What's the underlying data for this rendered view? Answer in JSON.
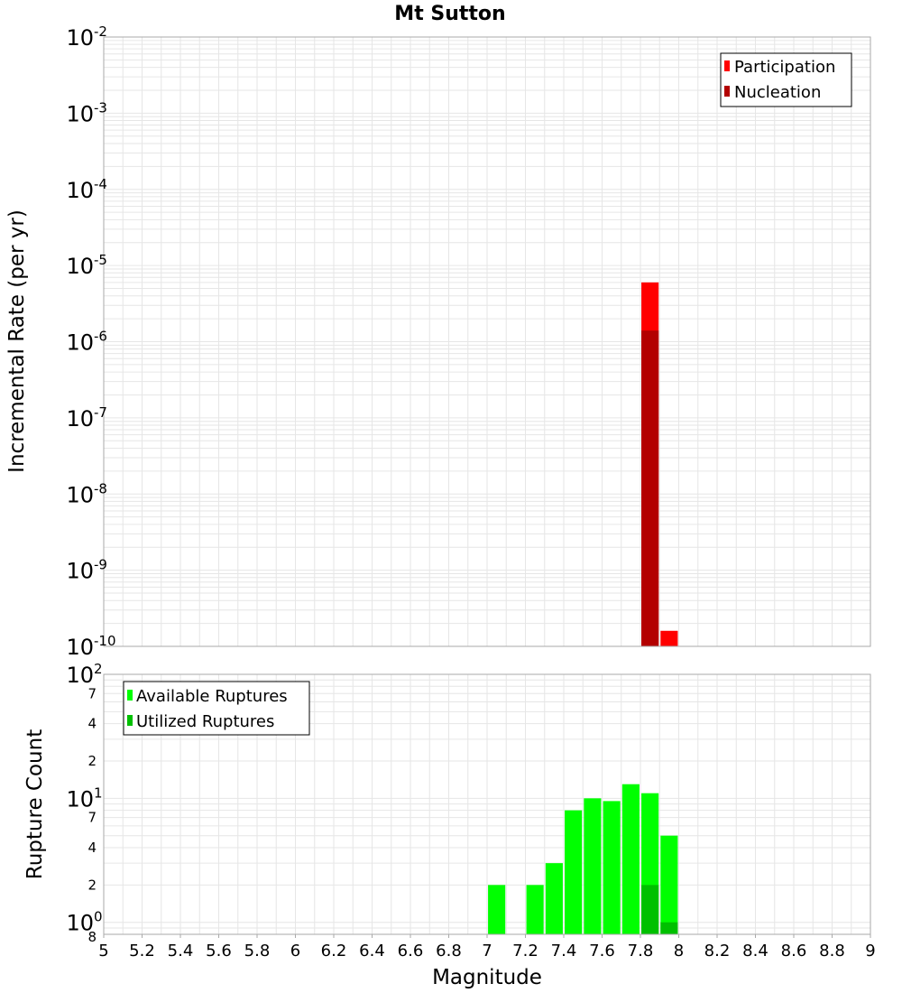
{
  "chart_data": [
    {
      "type": "bar",
      "title": "Mt Sutton",
      "ylabel": "Incremental Rate (per yr)",
      "yscale": "log",
      "ylim": [
        1e-10,
        0.01
      ],
      "xlim": [
        5,
        9
      ],
      "y_ticks": [
        {
          "base": "10",
          "exp": "-10"
        },
        {
          "base": "10",
          "exp": "-9"
        },
        {
          "base": "10",
          "exp": "-8"
        },
        {
          "base": "10",
          "exp": "-7"
        },
        {
          "base": "10",
          "exp": "-6"
        },
        {
          "base": "10",
          "exp": "-5"
        },
        {
          "base": "10",
          "exp": "-4"
        },
        {
          "base": "10",
          "exp": "-3"
        },
        {
          "base": "10",
          "exp": "-2"
        }
      ],
      "legend_position": "top-right",
      "grid": true,
      "series": [
        {
          "name": "Participation",
          "color": "#ff0000",
          "x": [
            7.85,
            7.95
          ],
          "values": [
            6e-06,
            1.6e-10
          ]
        },
        {
          "name": "Nucleation",
          "color": "#b30000",
          "x": [
            7.85
          ],
          "values": [
            1.4e-06
          ]
        }
      ]
    },
    {
      "type": "bar",
      "xlabel": "Magnitude",
      "ylabel": "Rupture Count",
      "yscale": "log",
      "ylim": [
        0.8,
        100
      ],
      "xlim": [
        5,
        9
      ],
      "x_ticks": [
        "5",
        "5.2",
        "5.4",
        "5.6",
        "5.8",
        "6",
        "6.2",
        "6.4",
        "6.6",
        "6.8",
        "7",
        "7.2",
        "7.4",
        "7.6",
        "7.8",
        "8",
        "8.2",
        "8.4",
        "8.6",
        "8.8",
        "9"
      ],
      "y_major_ticks": [
        {
          "base": "10",
          "exp": "0"
        },
        {
          "base": "10",
          "exp": "1"
        },
        {
          "base": "10",
          "exp": "2"
        }
      ],
      "y_minor_ticks": [
        "8",
        "2",
        "4",
        "7",
        "2",
        "4",
        "7"
      ],
      "legend_position": "top-left",
      "grid": true,
      "series": [
        {
          "name": "Available Ruptures",
          "color": "#00ff00",
          "x": [
            7.05,
            7.25,
            7.35,
            7.45,
            7.55,
            7.65,
            7.75,
            7.85,
            7.95
          ],
          "values": [
            2,
            2,
            3,
            8,
            10,
            9.5,
            13,
            11,
            5
          ]
        },
        {
          "name": "Utilized Ruptures",
          "color": "#00c000",
          "x": [
            7.85,
            7.95
          ],
          "values": [
            2,
            1
          ]
        }
      ]
    }
  ]
}
